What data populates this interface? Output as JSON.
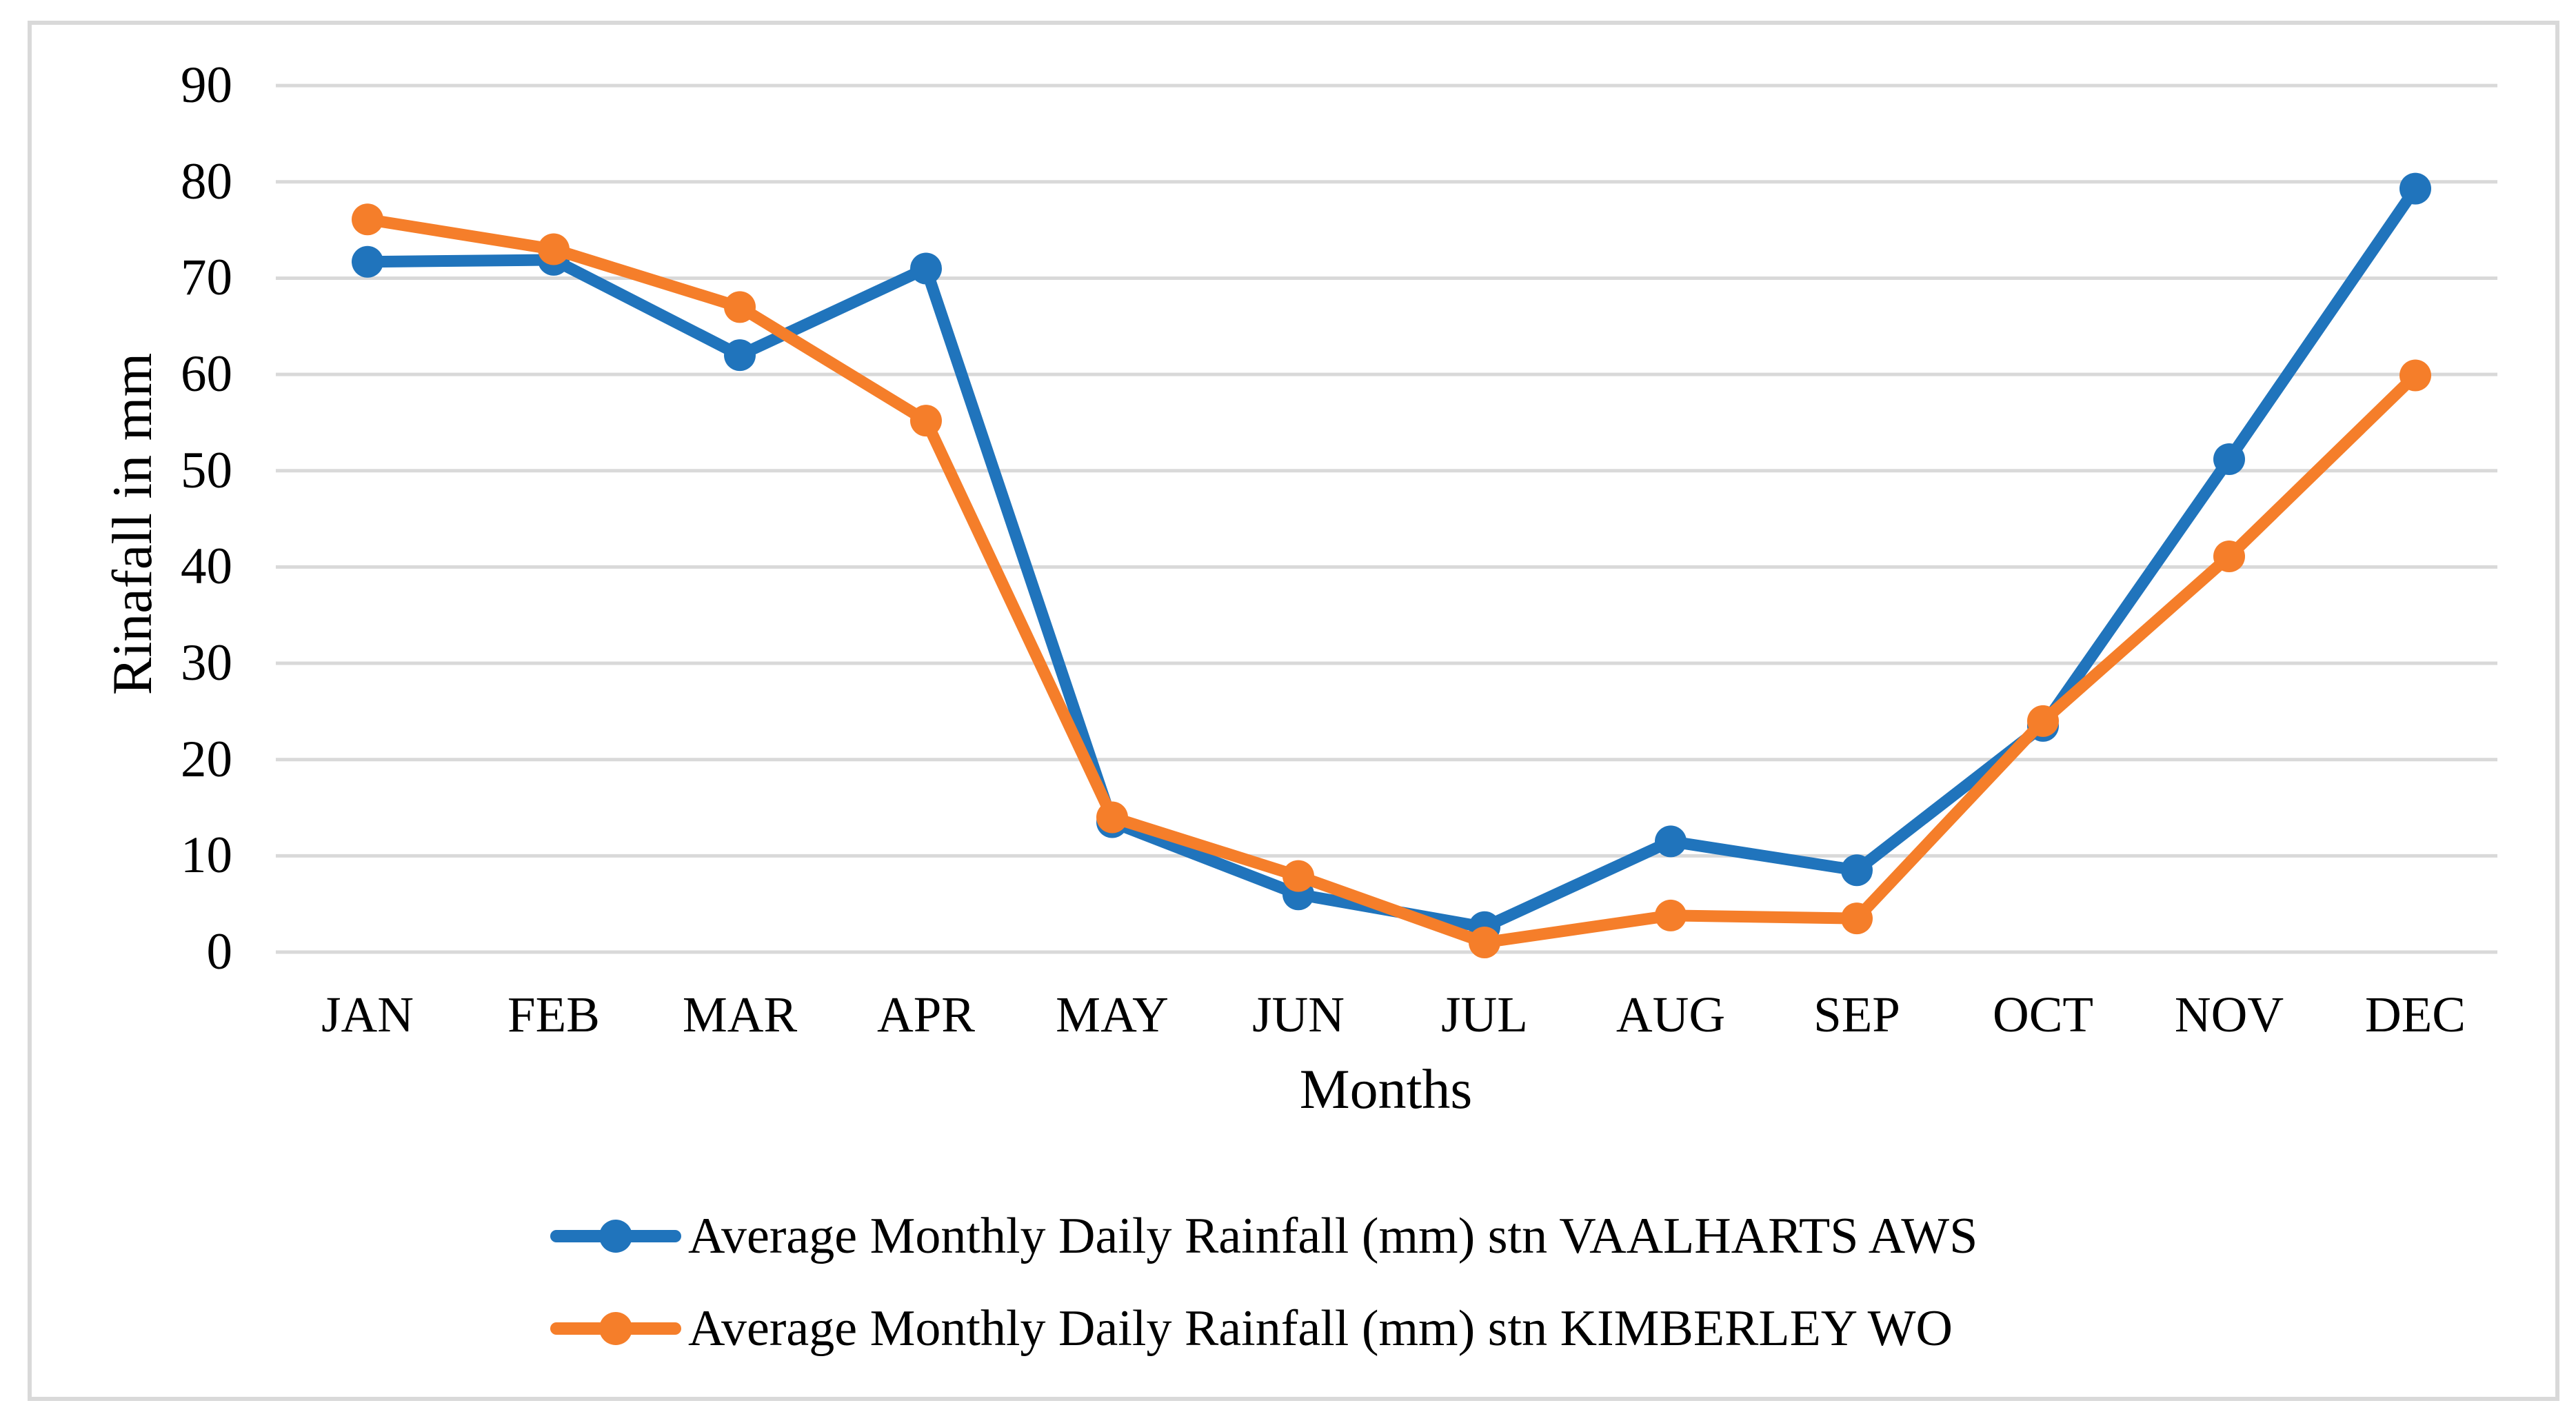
{
  "chart_data": {
    "type": "line",
    "categories": [
      "JAN",
      "FEB",
      "MAR",
      "APR",
      "MAY",
      "JUN",
      "JUL",
      "AUG",
      "SEP",
      "OCT",
      "NOV",
      "DEC"
    ],
    "series": [
      {
        "name": "Average Monthly Daily Rainfall (mm) stn VAALHARTS AWS",
        "color": "#2074BC",
        "values": [
          71.7,
          71.9,
          62.0,
          71.0,
          13.5,
          6.0,
          2.6,
          11.5,
          8.5,
          23.5,
          51.2,
          79.3
        ]
      },
      {
        "name": "Average Monthly Daily Rainfall (mm) stn KIMBERLEY WO",
        "color": "#F57E2A",
        "values": [
          76.1,
          73.0,
          67.0,
          55.2,
          14.0,
          7.9,
          1.0,
          3.8,
          3.5,
          24.0,
          41.1,
          59.9
        ]
      }
    ],
    "xlabel": "Months",
    "ylabel": "Rinafall in mm",
    "ylim": [
      0,
      90
    ],
    "ytick_step": 10,
    "grid": "horizontal",
    "gridline_color": "#D9D9D9",
    "frame_border_color": "#D9D9D9",
    "legend_position": "bottom-left"
  }
}
